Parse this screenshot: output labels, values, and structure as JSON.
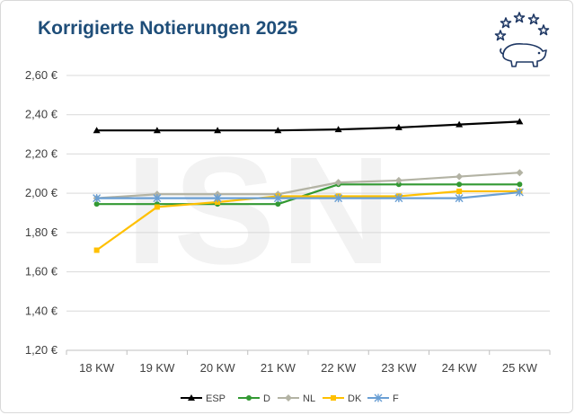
{
  "title": "Korrigierte Notierungen 2025",
  "watermark": "ISN",
  "chart_data": {
    "type": "line",
    "categories": [
      "18 KW",
      "19 KW",
      "20 KW",
      "21 KW",
      "22 KW",
      "23 KW",
      "24 KW",
      "25 KW"
    ],
    "y_ticks": [
      "1,20 €",
      "1,40 €",
      "1,60 €",
      "1,80 €",
      "2,00 €",
      "2,20 €",
      "2,40 €",
      "2,60 €"
    ],
    "ylim": [
      1.2,
      2.6
    ],
    "grid": "horizontal",
    "legend_position": "bottom",
    "series": [
      {
        "name": "ESP",
        "color": "#000000",
        "marker": "triangle",
        "values": [
          2.32,
          2.32,
          2.32,
          2.32,
          2.325,
          2.335,
          2.35,
          2.365
        ]
      },
      {
        "name": "D",
        "color": "#339933",
        "marker": "circle",
        "values": [
          1.945,
          1.945,
          1.945,
          1.945,
          2.045,
          2.045,
          2.045,
          2.045
        ]
      },
      {
        "name": "NL",
        "color": "#b3b3a4",
        "marker": "diamond",
        "values": [
          1.975,
          1.995,
          1.995,
          1.995,
          2.055,
          2.065,
          2.085,
          2.105
        ]
      },
      {
        "name": "DK",
        "color": "#ffc000",
        "marker": "square",
        "values": [
          1.71,
          1.93,
          1.955,
          1.985,
          1.985,
          1.985,
          2.01,
          2.01
        ]
      },
      {
        "name": "F",
        "color": "#6a9fd4",
        "marker": "star",
        "values": [
          1.975,
          1.975,
          1.975,
          1.975,
          1.975,
          1.975,
          1.975,
          2.005
        ]
      }
    ]
  }
}
